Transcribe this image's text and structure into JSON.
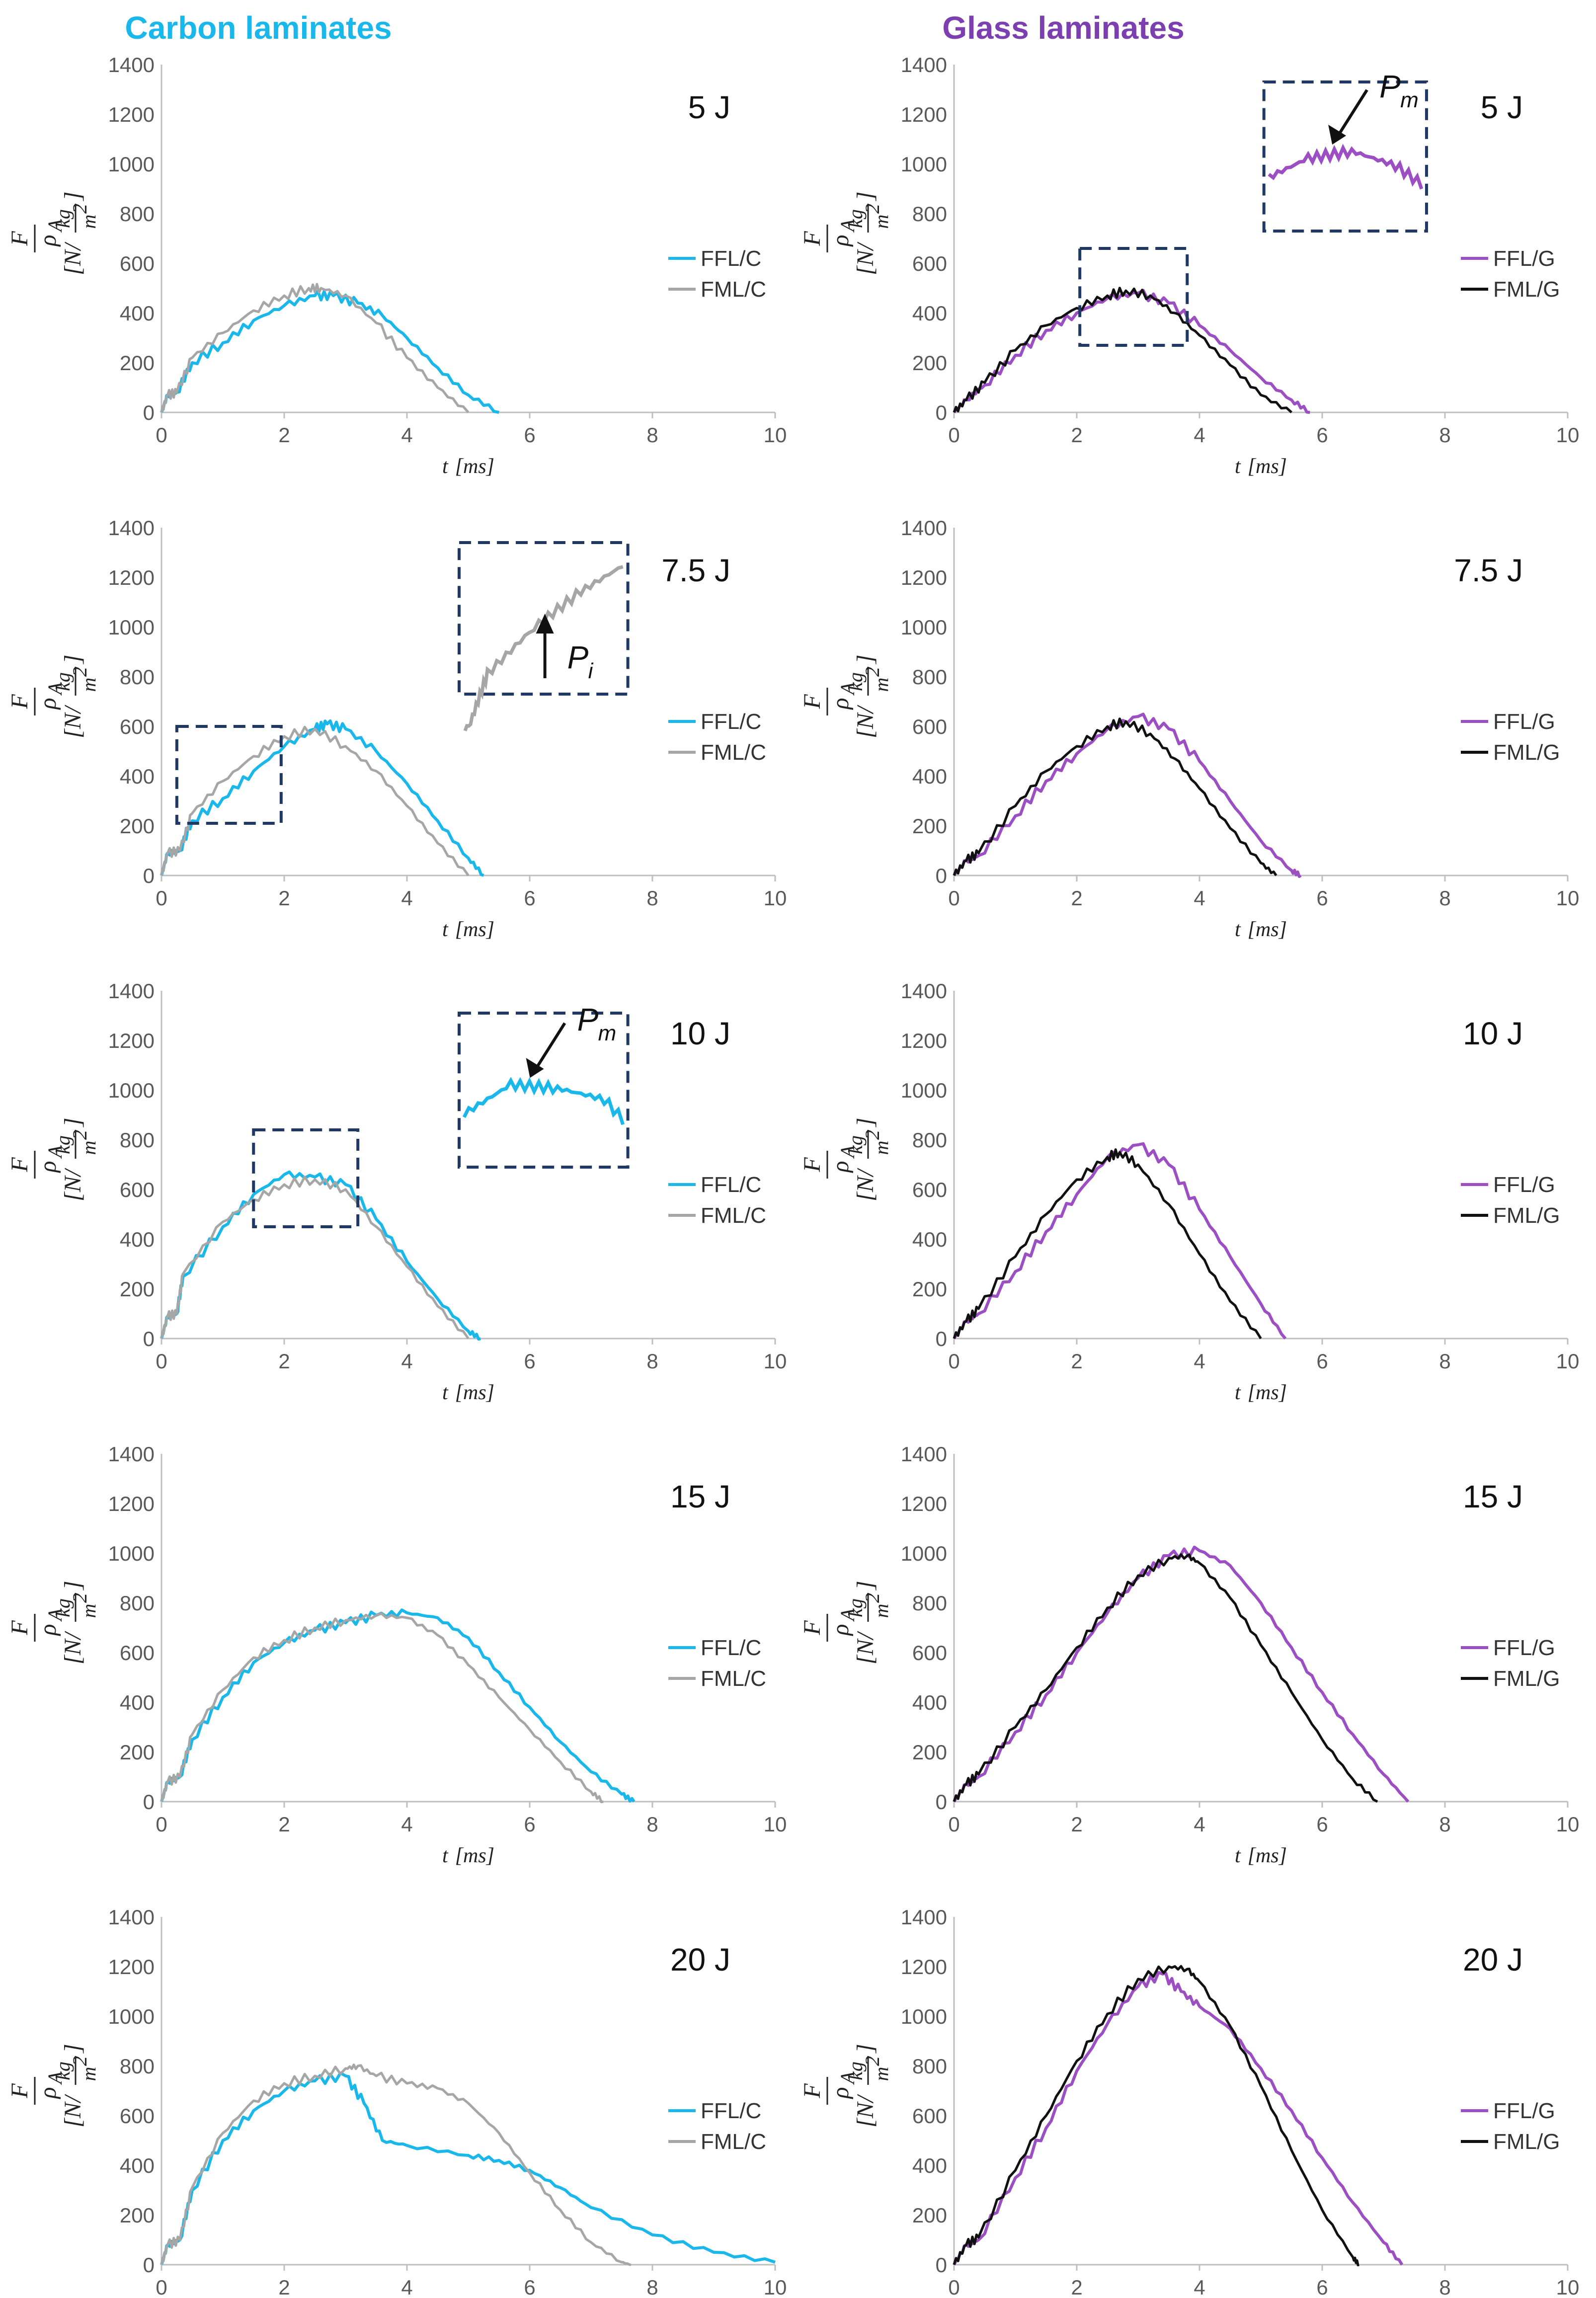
{
  "colors": {
    "carbon_title": "#1ab7ea",
    "glass_title": "#7b3fb0",
    "ffl_c": "#1ab7ea",
    "fml_c": "#a6a6a6",
    "ffl_g": "#9b4fc2",
    "fml_g": "#111111",
    "inset_border": "#1f3864"
  },
  "columns": {
    "carbon": "Carbon laminates",
    "glass": "Glass laminates"
  },
  "axes": {
    "xlabel": "t",
    "xunit": "[ms]",
    "ylabel_num": "F",
    "ylabel_den": "ρ",
    "ylabel_den_sub": "A",
    "ylabel_unit_open": "[N/",
    "ylabel_unit_num": "kg",
    "ylabel_unit_den": "m",
    "ylabel_unit_exp": "2",
    "ylabel_unit_close": "]",
    "xlim": [
      0,
      10
    ],
    "ylim": [
      0,
      1400
    ],
    "xticks": [
      "0",
      "2",
      "4",
      "6",
      "8",
      "10"
    ],
    "yticks": [
      "0",
      "200",
      "400",
      "600",
      "800",
      "1000",
      "1200",
      "1400"
    ]
  },
  "annotations": {
    "Pm_letter": "P",
    "Pm_sub": "m",
    "Pi_letter": "P",
    "Pi_sub": "i"
  },
  "chart_data": [
    {
      "type": "line",
      "column": "carbon",
      "energy": "5 J",
      "xlabel": "t [ms]",
      "ylabel": "F/ρA [N/(kg/m2)]",
      "xlim": [
        0,
        10
      ],
      "ylim": [
        0,
        1400
      ],
      "legend": "right",
      "series": [
        {
          "name": "FFL/C",
          "color": "#1ab7ea",
          "x": [
            0,
            0.1,
            0.25,
            0.5,
            1.0,
            1.5,
            2.0,
            2.5,
            2.8,
            3.2,
            3.6,
            4.0,
            4.5,
            5.0,
            5.5
          ],
          "y": [
            0,
            70,
            80,
            200,
            280,
            370,
            430,
            470,
            470,
            440,
            390,
            300,
            180,
            70,
            0
          ]
        },
        {
          "name": "FML/C",
          "color": "#a6a6a6",
          "x": [
            0,
            0.1,
            0.25,
            0.5,
            1.0,
            1.5,
            2.0,
            2.4,
            2.6,
            3.0,
            3.5,
            4.0,
            4.5,
            5.0
          ],
          "y": [
            0,
            70,
            80,
            220,
            320,
            410,
            470,
            500,
            500,
            470,
            360,
            220,
            100,
            0
          ]
        }
      ]
    },
    {
      "type": "line",
      "column": "glass",
      "energy": "5 J",
      "xlabel": "t [ms]",
      "ylabel": "F/ρA [N/(kg/m2)]",
      "xlim": [
        0,
        10
      ],
      "ylim": [
        0,
        1400
      ],
      "legend": "right",
      "series": [
        {
          "name": "FFL/G",
          "color": "#9b4fc2",
          "x": [
            0,
            0.2,
            0.5,
            1.0,
            1.5,
            2.0,
            2.5,
            3.0,
            3.5,
            4.0,
            4.5,
            5.0,
            5.5,
            5.8
          ],
          "y": [
            0,
            50,
            110,
            230,
            330,
            400,
            460,
            480,
            440,
            350,
            250,
            140,
            50,
            0
          ]
        },
        {
          "name": "FML/G",
          "color": "#111111",
          "x": [
            0,
            0.2,
            0.5,
            1.0,
            1.5,
            2.0,
            2.5,
            2.8,
            3.2,
            3.6,
            4.0,
            4.5,
            5.0,
            5.5
          ],
          "y": [
            0,
            50,
            120,
            250,
            350,
            420,
            470,
            490,
            470,
            400,
            310,
            190,
            70,
            0
          ]
        }
      ]
    },
    {
      "type": "line",
      "column": "carbon",
      "energy": "7.5 J",
      "xlabel": "t [ms]",
      "ylabel": "F/ρA [N/(kg/m2)]",
      "xlim": [
        0,
        10
      ],
      "ylim": [
        0,
        1400
      ],
      "legend": "right",
      "series": [
        {
          "name": "FFL/C",
          "color": "#1ab7ea",
          "x": [
            0,
            0.1,
            0.3,
            0.5,
            1.0,
            1.5,
            2.0,
            2.5,
            2.7,
            3.0,
            3.5,
            4.0,
            4.5,
            5.0,
            5.25
          ],
          "y": [
            0,
            90,
            100,
            220,
            310,
            420,
            520,
            590,
            610,
            590,
            500,
            370,
            220,
            70,
            0
          ]
        },
        {
          "name": "FML/C",
          "color": "#a6a6a6",
          "x": [
            0,
            0.1,
            0.3,
            0.5,
            1.0,
            1.5,
            2.0,
            2.5,
            3.0,
            3.5,
            4.0,
            4.5,
            5.0
          ],
          "y": [
            0,
            90,
            100,
            250,
            380,
            480,
            560,
            590,
            520,
            420,
            280,
            130,
            0
          ]
        }
      ]
    },
    {
      "type": "line",
      "column": "glass",
      "energy": "7.5 J",
      "xlabel": "t [ms]",
      "ylabel": "F/ρA [N/(kg/m2)]",
      "xlim": [
        0,
        10
      ],
      "ylim": [
        0,
        1400
      ],
      "legend": "right",
      "series": [
        {
          "name": "FFL/G",
          "color": "#9b4fc2",
          "x": [
            0,
            0.2,
            0.4,
            1.0,
            1.5,
            2.0,
            2.5,
            3.0,
            3.5,
            4.0,
            4.5,
            5.0,
            5.5,
            5.65
          ],
          "y": [
            0,
            60,
            80,
            240,
            380,
            490,
            590,
            640,
            590,
            460,
            300,
            140,
            20,
            0
          ]
        },
        {
          "name": "FML/G",
          "color": "#111111",
          "x": [
            0,
            0.2,
            0.4,
            1.0,
            1.5,
            2.0,
            2.5,
            2.8,
            3.2,
            3.6,
            4.0,
            4.5,
            5.0,
            5.25
          ],
          "y": [
            0,
            60,
            90,
            280,
            420,
            520,
            600,
            620,
            570,
            470,
            350,
            190,
            50,
            0
          ]
        }
      ]
    },
    {
      "type": "line",
      "column": "carbon",
      "energy": "10 J",
      "xlabel": "t [ms]",
      "ylabel": "F/ρA [N/(kg/m2)]",
      "xlim": [
        0,
        10
      ],
      "ylim": [
        0,
        1400
      ],
      "legend": "right",
      "series": [
        {
          "name": "FFL/C",
          "color": "#1ab7ea",
          "x": [
            0,
            0.1,
            0.25,
            0.35,
            1.0,
            1.5,
            2.0,
            2.5,
            3.0,
            3.5,
            4.0,
            4.5,
            5.0,
            5.2
          ],
          "y": [
            0,
            90,
            100,
            250,
            450,
            580,
            660,
            650,
            620,
            480,
            310,
            160,
            30,
            0
          ]
        },
        {
          "name": "FML/C",
          "color": "#a6a6a6",
          "x": [
            0,
            0.1,
            0.25,
            0.35,
            1.0,
            1.5,
            2.0,
            2.5,
            3.0,
            3.5,
            4.0,
            4.5,
            5.0
          ],
          "y": [
            0,
            90,
            100,
            260,
            470,
            560,
            620,
            640,
            600,
            450,
            290,
            130,
            0
          ]
        }
      ]
    },
    {
      "type": "line",
      "column": "glass",
      "energy": "10 J",
      "xlabel": "t [ms]",
      "ylabel": "F/ρA [N/(kg/m2)]",
      "xlim": [
        0,
        10
      ],
      "ylim": [
        0,
        1400
      ],
      "legend": "right",
      "series": [
        {
          "name": "FFL/G",
          "color": "#9b4fc2",
          "x": [
            0,
            0.2,
            0.4,
            1.0,
            1.5,
            2.0,
            2.5,
            3.0,
            3.5,
            4.0,
            4.5,
            5.0,
            5.4
          ],
          "y": [
            0,
            70,
            100,
            270,
            430,
            580,
            730,
            780,
            700,
            520,
            330,
            140,
            0
          ]
        },
        {
          "name": "FML/G",
          "color": "#111111",
          "x": [
            0,
            0.2,
            0.4,
            1.0,
            1.5,
            2.0,
            2.5,
            2.7,
            3.0,
            3.5,
            4.0,
            4.5,
            5.0
          ],
          "y": [
            0,
            70,
            120,
            330,
            500,
            640,
            730,
            750,
            700,
            540,
            340,
            150,
            0
          ]
        }
      ]
    },
    {
      "type": "line",
      "column": "carbon",
      "energy": "15 J",
      "xlabel": "t [ms]",
      "ylabel": "F/ρA [N/(kg/m2)]",
      "xlim": [
        0,
        10
      ],
      "ylim": [
        0,
        1400
      ],
      "legend": "right",
      "series": [
        {
          "name": "FFL/C",
          "color": "#1ab7ea",
          "x": [
            0,
            0.1,
            0.3,
            0.5,
            1.0,
            1.5,
            2.0,
            2.5,
            3.0,
            3.5,
            4.0,
            4.5,
            5.0,
            5.5,
            6.0,
            6.5,
            7.0,
            7.5,
            7.7
          ],
          "y": [
            0,
            80,
            100,
            250,
            420,
            560,
            640,
            690,
            720,
            750,
            760,
            740,
            660,
            520,
            380,
            240,
            120,
            30,
            0
          ]
        },
        {
          "name": "FML/C",
          "color": "#a6a6a6",
          "x": [
            0,
            0.1,
            0.3,
            0.5,
            1.0,
            1.5,
            2.0,
            2.5,
            3.0,
            3.5,
            4.0,
            4.5,
            5.0,
            5.5,
            6.0,
            6.5,
            7.0,
            7.2
          ],
          "y": [
            0,
            80,
            100,
            270,
            450,
            580,
            650,
            700,
            730,
            750,
            740,
            670,
            550,
            420,
            290,
            160,
            40,
            0
          ]
        }
      ]
    },
    {
      "type": "line",
      "column": "glass",
      "energy": "15 J",
      "xlabel": "t [ms]",
      "ylabel": "F/ρA [N/(kg/m2)]",
      "xlim": [
        0,
        10
      ],
      "ylim": [
        0,
        1400
      ],
      "legend": "right",
      "series": [
        {
          "name": "FFL/G",
          "color": "#9b4fc2",
          "x": [
            0,
            0.2,
            0.4,
            1.0,
            1.5,
            2.0,
            2.5,
            3.0,
            3.5,
            4.0,
            4.5,
            5.0,
            5.5,
            6.0,
            6.5,
            7.0,
            7.4
          ],
          "y": [
            0,
            70,
            100,
            280,
            430,
            600,
            760,
            900,
            990,
            1010,
            950,
            800,
            620,
            440,
            270,
            110,
            0
          ]
        },
        {
          "name": "FML/G",
          "color": "#111111",
          "x": [
            0,
            0.2,
            0.4,
            1.0,
            1.5,
            2.0,
            2.5,
            3.0,
            3.5,
            3.8,
            4.0,
            4.5,
            5.0,
            5.5,
            6.0,
            6.5,
            6.9
          ],
          "y": [
            0,
            70,
            110,
            300,
            450,
            620,
            780,
            910,
            980,
            990,
            960,
            820,
            630,
            440,
            250,
            90,
            0
          ]
        }
      ]
    },
    {
      "type": "line",
      "column": "carbon",
      "energy": "20 J",
      "xlabel": "t [ms]",
      "ylabel": "F/ρA [N/(kg/m2)]",
      "xlim": [
        0,
        10
      ],
      "ylim": [
        0,
        1400
      ],
      "legend": "right",
      "series": [
        {
          "name": "FFL/C",
          "color": "#1ab7ea",
          "x": [
            0,
            0.1,
            0.3,
            0.5,
            1.0,
            1.5,
            2.0,
            2.5,
            3.0,
            3.3,
            3.6,
            4.0,
            5.0,
            5.5,
            6.0,
            6.5,
            7.0,
            8.0,
            9.0,
            10.0
          ],
          "y": [
            0,
            80,
            100,
            300,
            500,
            620,
            700,
            740,
            760,
            650,
            500,
            480,
            440,
            420,
            380,
            310,
            230,
            120,
            50,
            10
          ]
        },
        {
          "name": "FML/C",
          "color": "#a6a6a6",
          "x": [
            0,
            0.1,
            0.3,
            0.5,
            1.0,
            1.5,
            2.0,
            2.5,
            3.0,
            3.2,
            3.5,
            4.0,
            4.5,
            5.0,
            5.5,
            6.0,
            6.5,
            7.0,
            7.5,
            7.65
          ],
          "y": [
            0,
            80,
            100,
            310,
            530,
            660,
            730,
            760,
            790,
            800,
            760,
            730,
            710,
            650,
            530,
            370,
            220,
            90,
            10,
            0
          ]
        }
      ]
    },
    {
      "type": "line",
      "column": "glass",
      "energy": "20 J",
      "xlabel": "t [ms]",
      "ylabel": "F/ρA [N/(kg/m2)]",
      "xlim": [
        0,
        10
      ],
      "ylim": [
        0,
        1400
      ],
      "legend": "right",
      "series": [
        {
          "name": "FFL/G",
          "color": "#9b4fc2",
          "x": [
            0,
            0.2,
            0.4,
            1.0,
            1.5,
            2.0,
            2.5,
            3.0,
            3.4,
            3.7,
            4.0,
            4.5,
            5.0,
            5.5,
            6.0,
            6.5,
            7.0,
            7.3
          ],
          "y": [
            0,
            80,
            100,
            350,
            550,
            780,
            970,
            1120,
            1170,
            1100,
            1040,
            950,
            790,
            620,
            430,
            250,
            90,
            0
          ]
        },
        {
          "name": "FML/G",
          "color": "#111111",
          "x": [
            0,
            0.2,
            0.4,
            1.0,
            1.5,
            2.0,
            2.5,
            3.0,
            3.5,
            3.8,
            4.0,
            4.5,
            5.0,
            5.5,
            6.0,
            6.5,
            6.6
          ],
          "y": [
            0,
            80,
            110,
            380,
            600,
            820,
            1010,
            1150,
            1200,
            1190,
            1140,
            960,
            720,
            460,
            220,
            30,
            0
          ]
        }
      ]
    }
  ]
}
